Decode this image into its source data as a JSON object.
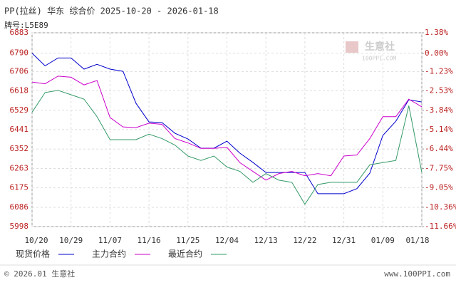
{
  "chart_data": {
    "type": "line",
    "title": "PP(拉丝) 华东 综合价 2025-10-20 - 2026-01-18",
    "subtitle": "牌号:L5E89",
    "x": [
      "10/20",
      "10/23",
      "10/26",
      "10/29",
      "11/01",
      "11/04",
      "11/07",
      "11/10",
      "11/13",
      "11/16",
      "11/19",
      "11/22",
      "11/25",
      "11/28",
      "12/01",
      "12/04",
      "12/07",
      "12/10",
      "12/13",
      "12/16",
      "12/19",
      "12/22",
      "12/25",
      "12/28",
      "12/31",
      "01/03",
      "01/06",
      "01/09",
      "01/12",
      "01/15",
      "01/18"
    ],
    "xlim": [
      "10/20",
      "01/18"
    ],
    "xticks": [
      "10/20",
      "10/29",
      "11/07",
      "11/16",
      "11/25",
      "12/04",
      "12/13",
      "12/22",
      "12/31",
      "01/09",
      "01/18"
    ],
    "ylim": [
      5998,
      6883
    ],
    "yticks": [
      6883,
      6790,
      6706,
      6618,
      6529,
      6441,
      6352,
      6263,
      6175,
      6086,
      5998
    ],
    "y2lim": [
      -11.66,
      1.38
    ],
    "y2ticks": [
      {
        "value": 1.38,
        "label": "1.38%"
      },
      {
        "value": 0,
        "label": "0.00%"
      },
      {
        "value": -1.23,
        "label": "-1.23%"
      },
      {
        "value": -2.53,
        "label": "-2.53%"
      },
      {
        "value": -3.84,
        "label": "-3.84%"
      },
      {
        "value": -5.14,
        "label": "-5.14%"
      },
      {
        "value": -6.44,
        "label": "-6.44%"
      },
      {
        "value": -7.75,
        "label": "-7.75%"
      },
      {
        "value": -9.05,
        "label": "-9.05%"
      },
      {
        "value": -10.36,
        "label": "-10.36%"
      },
      {
        "value": -11.66,
        "label": "-11.66%"
      }
    ],
    "grid": true,
    "series": [
      {
        "name": "现货价格",
        "color": "#0000cc",
        "values": [
          6790,
          6732,
          6768,
          6768,
          6717,
          6739,
          6717,
          6707,
          6561,
          6476,
          6473,
          6424,
          6398,
          6356,
          6356,
          6388,
          6333,
          6291,
          6245,
          6245,
          6245,
          6245,
          6148,
          6148,
          6148,
          6171,
          6242,
          6414,
          6479,
          6577,
          6567
        ]
      },
      {
        "name": "主力合约",
        "color": "#cc00cc",
        "values": [
          6658,
          6650,
          6685,
          6680,
          6645,
          6665,
          6496,
          6453,
          6450,
          6470,
          6465,
          6400,
          6380,
          6355,
          6355,
          6360,
          6290,
          6250,
          6210,
          6240,
          6250,
          6230,
          6240,
          6230,
          6320,
          6325,
          6400,
          6500,
          6500,
          6580,
          6545
        ]
      },
      {
        "name": "最近合约",
        "color": "#339966",
        "values": [
          6520,
          6610,
          6620,
          6600,
          6580,
          6500,
          6395,
          6395,
          6395,
          6420,
          6400,
          6370,
          6320,
          6300,
          6320,
          6270,
          6250,
          6200,
          6240,
          6210,
          6200,
          6100,
          6190,
          6200,
          6200,
          6200,
          6280,
          6290,
          6300,
          6550,
          6245
        ]
      }
    ]
  },
  "watermark": {
    "brand": "生意社",
    "url": "100PPI.COM"
  },
  "footer": {
    "copyright": "© 2026.01 生意社",
    "site": "www.100PPI.com"
  }
}
